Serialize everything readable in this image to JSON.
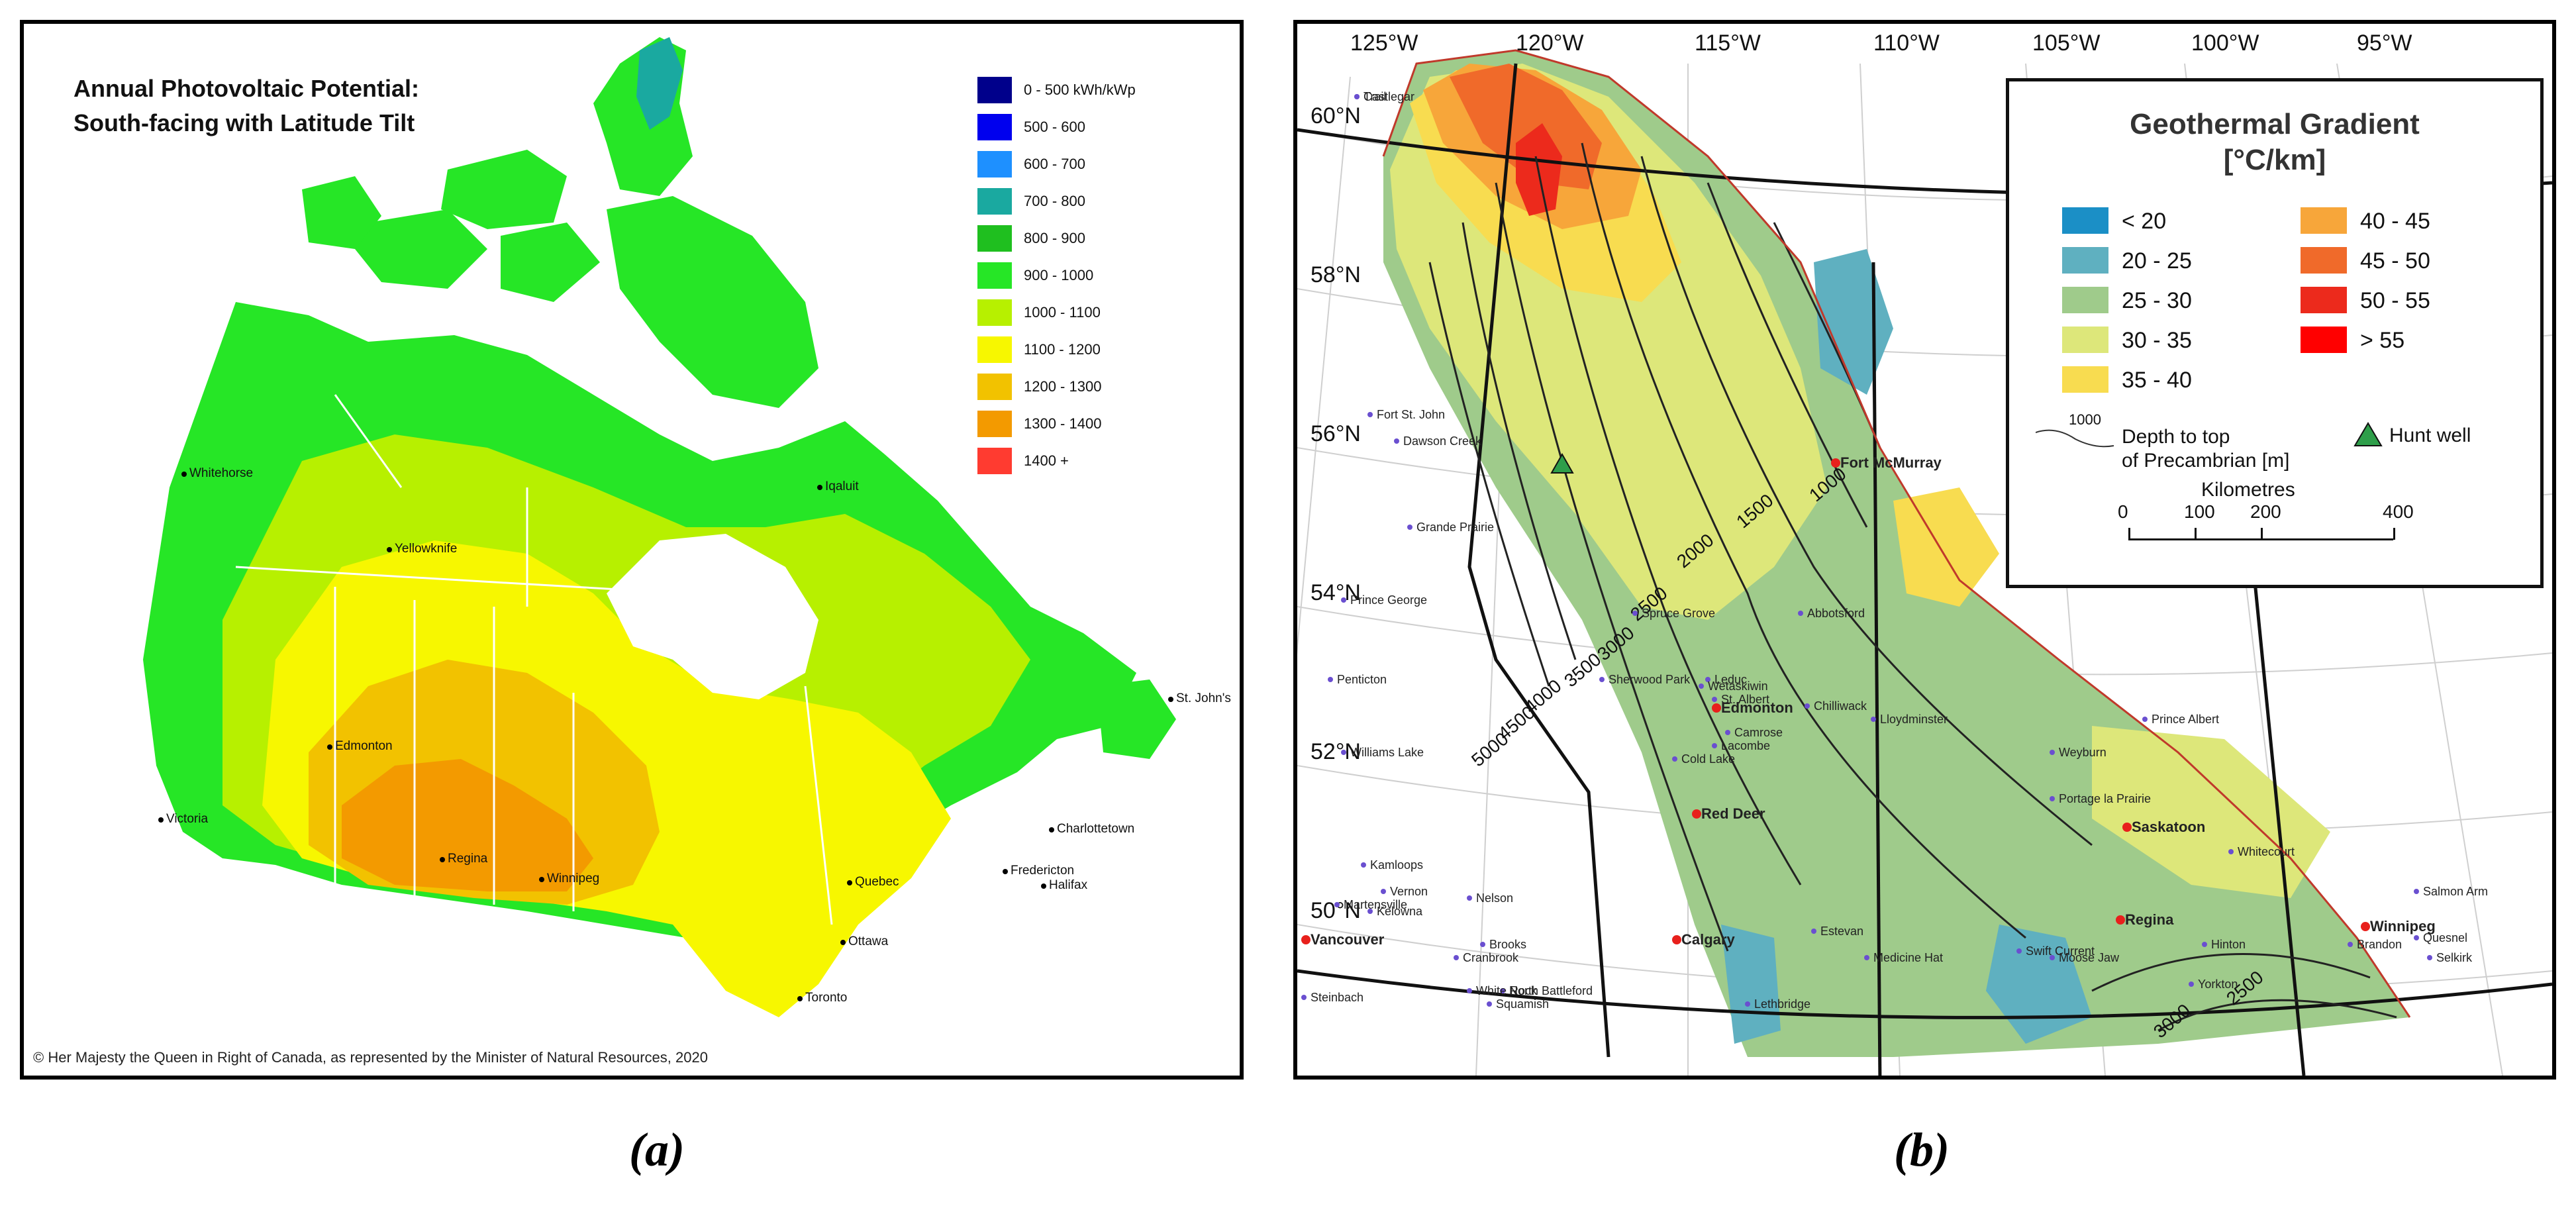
{
  "panel_a": {
    "title_line1": "Annual Photovoltaic Potential:",
    "title_line2": "South-facing with Latitude Tilt",
    "legend": [
      {
        "label": "0 - 500 kWh/kWp",
        "color": "#00008b"
      },
      {
        "label": "500 - 600",
        "color": "#0000ee"
      },
      {
        "label": "600 - 700",
        "color": "#1e90ff"
      },
      {
        "label": "700 - 800",
        "color": "#1aa9a0"
      },
      {
        "label": "800 - 900",
        "color": "#1fbf1f"
      },
      {
        "label": "900 - 1000",
        "color": "#26e626"
      },
      {
        "label": "1000 - 1100",
        "color": "#b7f000"
      },
      {
        "label": "1100 - 1200",
        "color": "#f7f700"
      },
      {
        "label": "1200 - 1300",
        "color": "#f2c200"
      },
      {
        "label": "1300 - 1400",
        "color": "#f39a00"
      },
      {
        "label": "1400 +",
        "color": "#ff3b30"
      }
    ],
    "cities": [
      "Whitehorse",
      "Yellowknife",
      "Iqaluit",
      "St. John's",
      "Edmonton",
      "Victoria",
      "Regina",
      "Winnipeg",
      "Charlottetown",
      "Fredericton",
      "Halifax",
      "Quebec",
      "Ottawa",
      "Toronto"
    ],
    "credit": "© Her Majesty the Queen in Right of Canada, as represented by the Minister of Natural Resources, 2020",
    "caption": "(a)"
  },
  "panel_b": {
    "lon_labels": [
      "125°W",
      "120°W",
      "115°W",
      "110°W",
      "105°W",
      "100°W",
      "95°W"
    ],
    "lat_labels": [
      "60°N",
      "58°N",
      "56°N",
      "54°N",
      "52°N",
      "50°N"
    ],
    "legend_title_1": "Geothermal Gradient",
    "legend_title_2": "[°C/km]",
    "legend": [
      {
        "label": "< 20",
        "color": "#1b8fc6"
      },
      {
        "label": "20 - 25",
        "color": "#5fb0c0"
      },
      {
        "label": "25 - 30",
        "color": "#9fcb8b"
      },
      {
        "label": "30 - 35",
        "color": "#dde77a"
      },
      {
        "label": "35 - 40",
        "color": "#f8dc50"
      },
      {
        "label": "40 - 45",
        "color": "#f7a63a"
      },
      {
        "label": "45 - 50",
        "color": "#f06a2a"
      },
      {
        "label": "50 - 55",
        "color": "#ec2a1c"
      },
      {
        "label": "> 55",
        "color": "#ff0000"
      }
    ],
    "contour_sample": "1000",
    "contour_caption_1": "Depth to top",
    "contour_caption_2": "of Precambrian [m]",
    "hunt_well": "Hunt well",
    "scale_title": "Kilometres",
    "scale_ticks": [
      "0",
      "100",
      "200",
      "400"
    ],
    "contour_labels": [
      "1000",
      "1500",
      "2000",
      "2500",
      "3000",
      "3500",
      "4000",
      "4500",
      "5000",
      "2500",
      "3000"
    ],
    "major_cities": [
      "Fort McMurray",
      "Edmonton",
      "Red Deer",
      "Calgary",
      "Regina",
      "Saskatoon",
      "Winnipeg",
      "Vancouver",
      "Prince George",
      "Williams Lake",
      "Kamloops",
      "Kelowna",
      "Vernon",
      "Brandon",
      "Lloydminster",
      "Prince Albert",
      "Medicine Hat",
      "Lethbridge",
      "Moose Jaw",
      "Swift Current",
      "Grande Prairie",
      "Fort St. John",
      "Dawson Creek",
      "Abbotsford",
      "Chilliwack",
      "Cold Lake",
      "Camrose",
      "Lacombe",
      "Leduc",
      "Wetaskiwin",
      "St. Albert",
      "Spruce Grove",
      "Sherwood Park",
      "Whitecourt",
      "Hinton",
      "Yorkton",
      "Weyburn",
      "Estevan",
      "North Battleford",
      "Brooks",
      "Cranbrook",
      "Nelson",
      "Penticton",
      "Salmon Arm",
      "Quesnel",
      "Selkirk",
      "Portage la Prairie",
      "Steinbach",
      "Martensville",
      "White Rock",
      "Squamish",
      "Castlegar",
      "Trail"
    ],
    "caption": "(b)"
  }
}
